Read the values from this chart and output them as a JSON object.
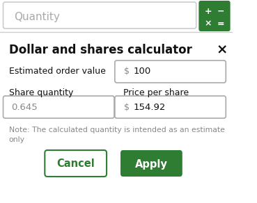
{
  "bg_color": "#ffffff",
  "quantity_placeholder": "Quantity",
  "quantity_placeholder_color": "#aaaaaa",
  "quantity_box_edge": "#cccccc",
  "calc_icon_bg": "#2e7d32",
  "calc_icon_color": "#ffffff",
  "divider_color": "#cccccc",
  "title": "Dollar and shares calculator",
  "title_color": "#111111",
  "close_x": "×",
  "close_color": "#111111",
  "label1": "Estimated order value",
  "label1_color": "#111111",
  "field1_dollar": "$",
  "field1_value": "100",
  "field1_edge": "#aaaaaa",
  "label2a": "Share quantity",
  "label2b": "Price per share",
  "label2_color": "#111111",
  "field2a_value": "0.645",
  "field2b_dollar": "$",
  "field2b_value": "154.92",
  "field_edge": "#aaaaaa",
  "note_text": "Note: The calculated quantity is intended as an estimate\nonly",
  "note_color": "#888888",
  "cancel_label": "Cancel",
  "cancel_text_color": "#2e7d32",
  "cancel_edge": "#2e7d32",
  "apply_label": "Apply",
  "apply_bg": "#2e7d32",
  "apply_text_color": "#ffffff",
  "panel_bg": "#ffffff",
  "calc_syms": [
    [
      "+",
      330,
      16
    ],
    [
      "−",
      350,
      16
    ],
    [
      "×",
      330,
      34
    ],
    [
      "=",
      350,
      34
    ]
  ]
}
